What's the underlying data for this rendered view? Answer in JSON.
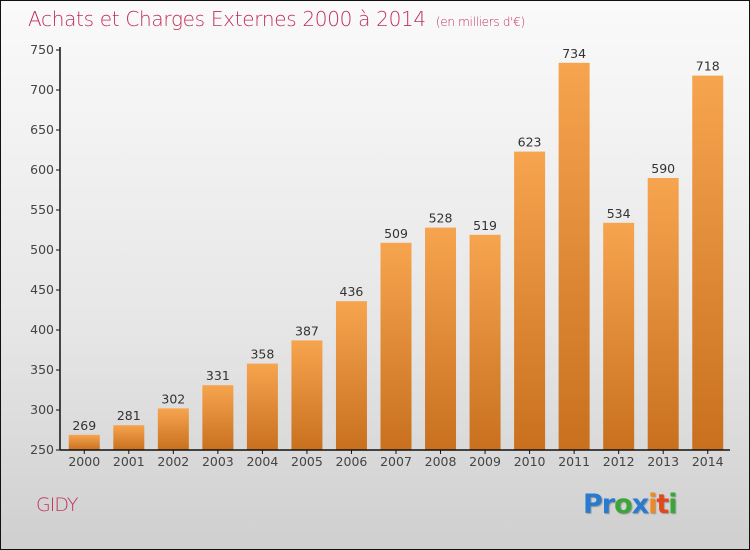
{
  "title": "Achats et Charges Externes 2000 à 2014",
  "unit": "(en milliers d'€)",
  "city": "GIDY",
  "logo": {
    "letters": [
      {
        "ch": "P",
        "color": "#2a7ad0"
      },
      {
        "ch": "r",
        "color": "#2a7ad0"
      },
      {
        "ch": "o",
        "color": "#3aa53a"
      },
      {
        "ch": "x",
        "color": "#2a7ad0"
      },
      {
        "ch": "i",
        "color": "#f08a1c"
      },
      {
        "ch": "t",
        "color": "#e04a1a"
      },
      {
        "ch": "i",
        "color": "#3aa53a"
      }
    ]
  },
  "colors": {
    "title": "#c0305a",
    "bar_top": "#f7a44f",
    "bar_bottom": "#c8701e",
    "axis": "#111111"
  },
  "chart_data": {
    "type": "bar",
    "title": "Achats et Charges Externes 2000 à 2014",
    "subtitle": "(en milliers d'€)",
    "xlabel": "",
    "ylabel": "",
    "categories": [
      "2000",
      "2001",
      "2002",
      "2003",
      "2004",
      "2005",
      "2006",
      "2007",
      "2008",
      "2009",
      "2010",
      "2011",
      "2012",
      "2013",
      "2014"
    ],
    "values": [
      269,
      281,
      302,
      331,
      358,
      387,
      436,
      509,
      528,
      519,
      623,
      734,
      534,
      590,
      718
    ],
    "ylim": [
      250,
      750
    ],
    "yticks": [
      250,
      300,
      350,
      400,
      450,
      500,
      550,
      600,
      650,
      700,
      750
    ],
    "grid": false,
    "legend": "none"
  }
}
